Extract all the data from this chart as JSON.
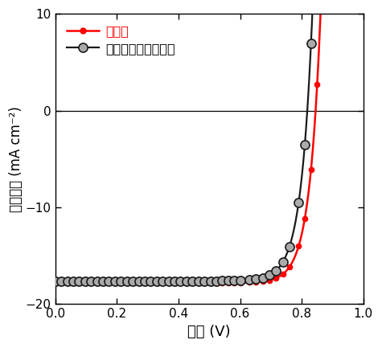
{
  "xlabel": "電圧 (V)",
  "ylabel": "電流密度 (mA cm⁻²)",
  "xlim": [
    0.0,
    1.0
  ],
  "ylim": [
    -20,
    10
  ],
  "xticks": [
    0.0,
    0.2,
    0.4,
    0.6,
    0.8,
    1.0
  ],
  "yticks": [
    -20,
    -10,
    0,
    10
  ],
  "red_label": "超薄型",
  "black_label": "参照（ガラス基板）",
  "red_color": "#FF0000",
  "black_color": "#1a1a1a",
  "background_color": "#ffffff",
  "voc_red": 0.845,
  "voc_black": 0.818,
  "jsc_red": 17.8,
  "jsc_black": 17.6,
  "n_red": 1.38,
  "n_black": 1.4
}
